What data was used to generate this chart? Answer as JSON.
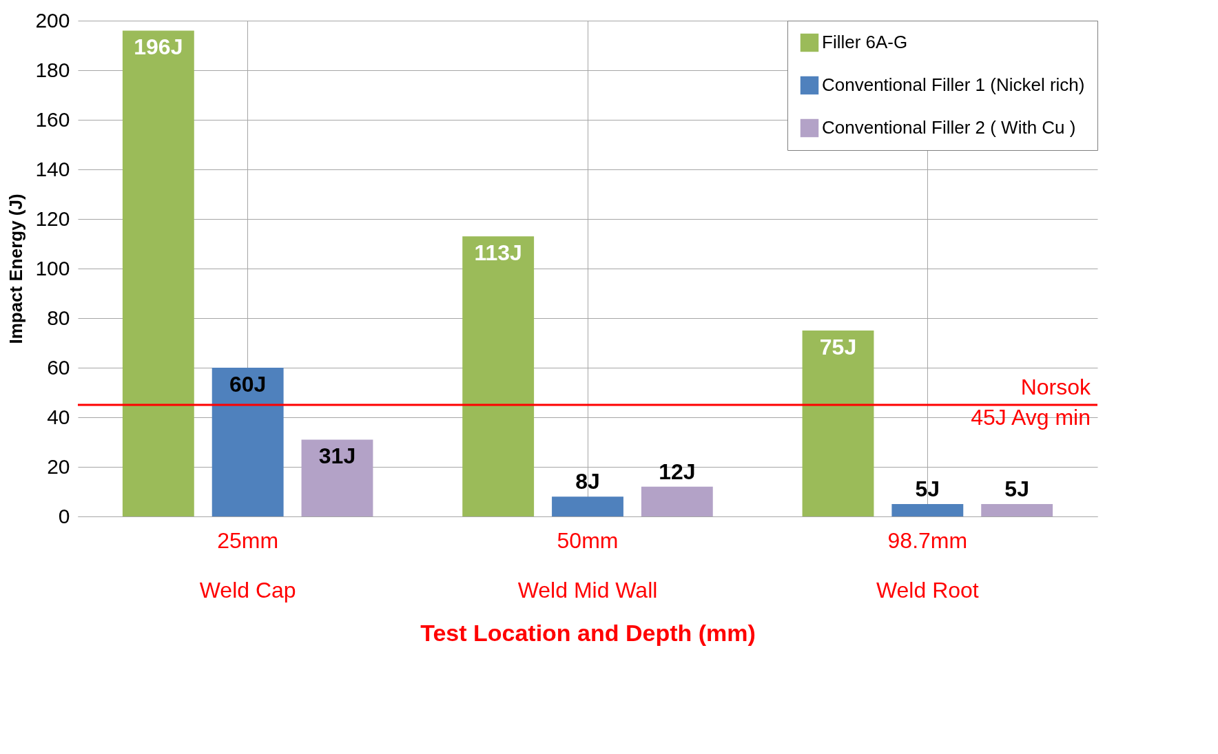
{
  "chart_data": {
    "type": "bar",
    "xlabel": "Test Location and Depth (mm)",
    "ylabel": "Impact Energy (J)",
    "categories": [
      "25mm\nWeld Cap",
      "50mm\nWeld Mid Wall",
      "98.7mm\nWeld Root"
    ],
    "series": [
      {
        "name": "Filler 6A-G",
        "color": "#9bbb59",
        "values": [
          196,
          113,
          75
        ],
        "value_labels": [
          "196J",
          "113J",
          "75J"
        ]
      },
      {
        "name": "Conventional Filler 1 (Nickel rich)",
        "color": "#4f81bd",
        "values": [
          60,
          8,
          5
        ],
        "value_labels": [
          "60J",
          "8J",
          "5J"
        ]
      },
      {
        "name": "Conventional Filler 2 ( With Cu )",
        "color": "#b3a2c7",
        "values": [
          31,
          12,
          5
        ],
        "value_labels": [
          "31J",
          "12J",
          "5J"
        ]
      }
    ],
    "ylim": [
      0,
      200
    ],
    "yticks": [
      0,
      20,
      40,
      60,
      80,
      100,
      120,
      140,
      160,
      180,
      200
    ],
    "ref_lines": [
      {
        "axis": "y",
        "value": 45,
        "label": "Norsok\n45J Avg min",
        "color": "#ff0000"
      }
    ],
    "grid": true,
    "legend": "top right"
  }
}
